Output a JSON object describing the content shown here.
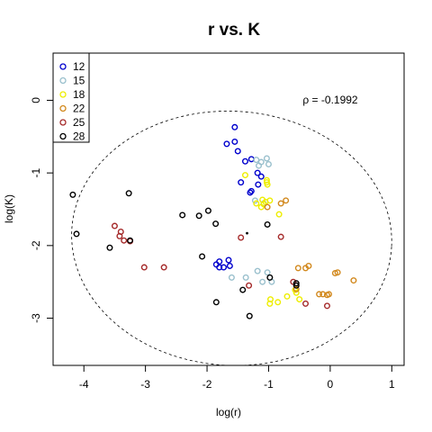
{
  "chart_data": {
    "type": "scatter",
    "title": "r vs. K",
    "xlabel": "log(r)",
    "ylabel": "log(K)",
    "xlim": [
      -4.5,
      1.2
    ],
    "ylim": [
      -3.65,
      0.65
    ],
    "x_ticks": [
      -4,
      -3,
      -2,
      -1,
      0,
      1
    ],
    "y_ticks": [
      0,
      -1,
      -2,
      -3
    ],
    "x_tick_labels": [
      "-4",
      "-3",
      "-2",
      "-1",
      "0",
      "1"
    ],
    "y_tick_labels": [
      "0",
      "-1",
      "-2",
      "-3"
    ],
    "grid": false,
    "legend_position": "top-left",
    "annotation": "ρ = -0.1992",
    "ellipse": {
      "center": [
        -1.6,
        -1.9
      ],
      "semi_axes": [
        2.6,
        1.75
      ],
      "rotation_deg": 3,
      "style": "dashed"
    },
    "extra_points": [
      [
        -1.35,
        -1.83
      ]
    ],
    "series": [
      {
        "name": "12",
        "color": "#0000cd",
        "points": [
          [
            -1.55,
            -0.37
          ],
          [
            -1.68,
            -0.6
          ],
          [
            -1.55,
            -0.57
          ],
          [
            -1.5,
            -0.7
          ],
          [
            -1.38,
            -0.84
          ],
          [
            -1.28,
            -0.81
          ],
          [
            -1.18,
            -1.0
          ],
          [
            -1.45,
            -1.13
          ],
          [
            -1.3,
            -1.27
          ],
          [
            -1.28,
            -1.25
          ],
          [
            -1.17,
            -1.16
          ],
          [
            -1.85,
            -2.26
          ],
          [
            -1.8,
            -2.22
          ],
          [
            -1.73,
            -2.3
          ],
          [
            -1.8,
            -2.3
          ],
          [
            -1.65,
            -2.2
          ],
          [
            -1.63,
            -2.28
          ],
          [
            -1.12,
            -1.05
          ]
        ]
      },
      {
        "name": "15",
        "color": "#9ac0cd",
        "points": [
          [
            -1.2,
            -0.82
          ],
          [
            -1.12,
            -0.85
          ],
          [
            -1.03,
            -0.8
          ],
          [
            -1.0,
            -0.88
          ],
          [
            -1.16,
            -0.9
          ],
          [
            -1.22,
            -1.38
          ],
          [
            -1.08,
            -1.42
          ],
          [
            -1.18,
            -2.35
          ],
          [
            -1.1,
            -2.5
          ],
          [
            -1.02,
            -2.37
          ],
          [
            -0.95,
            -2.5
          ],
          [
            -1.37,
            -2.44
          ],
          [
            -1.6,
            -2.44
          ]
        ]
      },
      {
        "name": "18",
        "color": "#eeee00",
        "points": [
          [
            -1.38,
            -1.03
          ],
          [
            -1.03,
            -1.1
          ],
          [
            -1.03,
            -1.13
          ],
          [
            -1.02,
            -1.16
          ],
          [
            -1.05,
            -1.4
          ],
          [
            -1.1,
            -1.37
          ],
          [
            -0.98,
            -1.38
          ],
          [
            -1.2,
            -1.42
          ],
          [
            -1.08,
            -1.43
          ],
          [
            -1.12,
            -1.47
          ],
          [
            -0.83,
            -1.57
          ],
          [
            -0.97,
            -2.74
          ],
          [
            -0.98,
            -2.8
          ],
          [
            -0.85,
            -2.78
          ],
          [
            -0.7,
            -2.7
          ],
          [
            -0.57,
            -2.61
          ],
          [
            -0.55,
            -2.65
          ],
          [
            -0.5,
            -2.74
          ]
        ]
      },
      {
        "name": "22",
        "color": "#d2891e",
        "points": [
          [
            -0.8,
            -1.42
          ],
          [
            -0.72,
            -1.38
          ],
          [
            -1.02,
            -1.47
          ],
          [
            -0.52,
            -2.31
          ],
          [
            -0.4,
            -2.31
          ],
          [
            -0.35,
            -2.28
          ],
          [
            0.08,
            -2.38
          ],
          [
            0.12,
            -2.37
          ],
          [
            0.38,
            -2.48
          ],
          [
            -0.18,
            -2.67
          ],
          [
            -0.12,
            -2.67
          ],
          [
            -0.05,
            -2.68
          ],
          [
            -0.02,
            -2.67
          ],
          [
            -0.55,
            -2.6
          ]
        ]
      },
      {
        "name": "25",
        "color": "#a52a2a",
        "points": [
          [
            -3.5,
            -1.73
          ],
          [
            -3.4,
            -1.81
          ],
          [
            -3.42,
            -1.87
          ],
          [
            -3.35,
            -1.93
          ],
          [
            -3.25,
            -1.94
          ],
          [
            -3.02,
            -2.3
          ],
          [
            -2.7,
            -2.3
          ],
          [
            -1.45,
            -1.89
          ],
          [
            -0.8,
            -1.88
          ],
          [
            -1.32,
            -2.55
          ],
          [
            -0.6,
            -2.5
          ],
          [
            -0.4,
            -2.8
          ],
          [
            -0.05,
            -2.83
          ]
        ]
      },
      {
        "name": "28",
        "color": "#000000",
        "points": [
          [
            -4.18,
            -1.3
          ],
          [
            -4.12,
            -1.84
          ],
          [
            -3.27,
            -1.28
          ],
          [
            -3.25,
            -1.93
          ],
          [
            -3.58,
            -2.03
          ],
          [
            -2.4,
            -1.58
          ],
          [
            -2.13,
            -1.59
          ],
          [
            -1.98,
            -1.52
          ],
          [
            -1.86,
            -1.7
          ],
          [
            -2.08,
            -2.15
          ],
          [
            -1.85,
            -2.78
          ],
          [
            -1.31,
            -2.97
          ],
          [
            -1.42,
            -2.61
          ],
          [
            -1.02,
            -1.71
          ],
          [
            -0.98,
            -2.44
          ],
          [
            -0.55,
            -2.52
          ],
          [
            -0.55,
            -2.55
          ]
        ]
      }
    ]
  }
}
